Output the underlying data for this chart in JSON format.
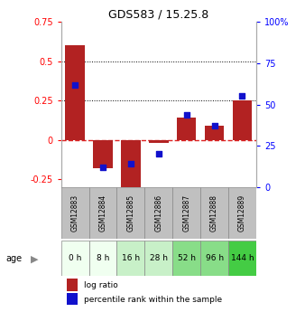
{
  "title": "GDS583 / 15.25.8",
  "samples": [
    "GSM12883",
    "GSM12884",
    "GSM12885",
    "GSM12886",
    "GSM12887",
    "GSM12888",
    "GSM12889"
  ],
  "ages": [
    "0 h",
    "8 h",
    "16 h",
    "28 h",
    "52 h",
    "96 h",
    "144 h"
  ],
  "log_ratio": [
    0.6,
    -0.18,
    -0.3,
    -0.02,
    0.14,
    0.09,
    0.25
  ],
  "percentile_rank": [
    0.62,
    0.12,
    0.14,
    0.2,
    0.44,
    0.37,
    0.55
  ],
  "bar_color": "#b22222",
  "dot_color": "#1111cc",
  "left_ylim": [
    -0.3,
    0.75
  ],
  "right_ylim": [
    0.0,
    1.0
  ],
  "left_yticks": [
    -0.25,
    0.0,
    0.25,
    0.5,
    0.75
  ],
  "left_yticklabels": [
    "-0.25",
    "0",
    "0.25",
    "0.5",
    "0.75"
  ],
  "right_yticks": [
    0.0,
    0.25,
    0.5,
    0.75,
    1.0
  ],
  "right_yticklabels": [
    "0",
    "25",
    "50",
    "75",
    "100%"
  ],
  "dotted_lines": [
    0.25,
    0.5
  ],
  "legend_log_ratio": "log ratio",
  "legend_percentile": "percentile rank within the sample",
  "header_bg": "#c0c0c0",
  "age_colors": [
    "#f0fff0",
    "#f0fff0",
    "#c8f0c8",
    "#c8f0c8",
    "#88dd88",
    "#88dd88",
    "#44cc44"
  ],
  "cell_edge_color": "#888888"
}
